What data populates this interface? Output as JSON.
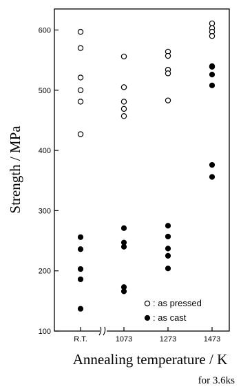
{
  "chart_data": {
    "type": "scatter",
    "xlabel": "Annealing temperature / K",
    "ylabel": "Strength  / MPa",
    "note": "for 3.6ks",
    "categories": [
      "R.T.",
      "1073",
      "1273",
      "1473"
    ],
    "ylim": [
      100,
      650
    ],
    "yticks": [
      100,
      200,
      300,
      400,
      500,
      600
    ],
    "grid": false,
    "legend_position": "bottom-right",
    "axis_break": "between R.T. and 1073",
    "series": [
      {
        "name": "as pressed",
        "marker": "open-circle",
        "values": [
          [
            597,
            570,
            521,
            500,
            481,
            427
          ],
          [
            556,
            505,
            481,
            469,
            457
          ],
          [
            564,
            557,
            534,
            528,
            483
          ],
          [
            611,
            603,
            597,
            590,
            539
          ]
        ]
      },
      {
        "name": "as cast",
        "marker": "filled-circle",
        "values": [
          [
            256,
            236,
            203,
            186,
            137
          ],
          [
            271,
            247,
            240,
            173,
            166
          ],
          [
            275,
            257,
            237,
            225,
            204
          ],
          [
            540,
            526,
            508,
            376,
            356
          ]
        ]
      }
    ],
    "legend": [
      {
        "label": ": as pressed",
        "marker": "open-circle"
      },
      {
        "label": ": as cast",
        "marker": "filled-circle"
      }
    ]
  }
}
